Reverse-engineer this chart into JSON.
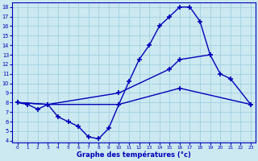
{
  "title": "Graphe des températures (°c)",
  "bg_color": "#cce8f0",
  "line_color": "#0000bb",
  "grid_color": "#99ccdd",
  "ylim": [
    4,
    18
  ],
  "xlim": [
    0,
    23
  ],
  "yticks": [
    4,
    5,
    6,
    7,
    8,
    9,
    10,
    11,
    12,
    13,
    14,
    15,
    16,
    17,
    18
  ],
  "xticks": [
    0,
    1,
    2,
    3,
    4,
    5,
    6,
    7,
    8,
    9,
    10,
    11,
    12,
    13,
    14,
    15,
    16,
    17,
    18,
    19,
    20,
    21,
    22,
    23
  ],
  "curve_main_x": [
    0,
    1,
    2,
    3,
    4,
    5,
    6,
    7,
    8,
    9,
    10,
    11,
    12,
    13,
    14,
    15,
    16,
    17,
    18,
    19
  ],
  "curve_main_y": [
    8.0,
    7.8,
    7.3,
    7.8,
    6.5,
    6.0,
    5.5,
    4.4,
    4.2,
    5.3,
    7.8,
    10.2,
    12.5,
    14.0,
    16.0,
    17.0,
    18.0,
    18.0,
    16.5,
    13.0
  ],
  "curve_diag_x": [
    0,
    3,
    10,
    15,
    16,
    19,
    20,
    21,
    23
  ],
  "curve_diag_y": [
    8.0,
    7.8,
    9.0,
    11.5,
    12.5,
    13.0,
    11.0,
    10.5,
    7.8
  ],
  "curve_flat_x": [
    0,
    3,
    10,
    16,
    23
  ],
  "curve_flat_y": [
    8.0,
    7.8,
    7.8,
    9.5,
    7.8
  ]
}
